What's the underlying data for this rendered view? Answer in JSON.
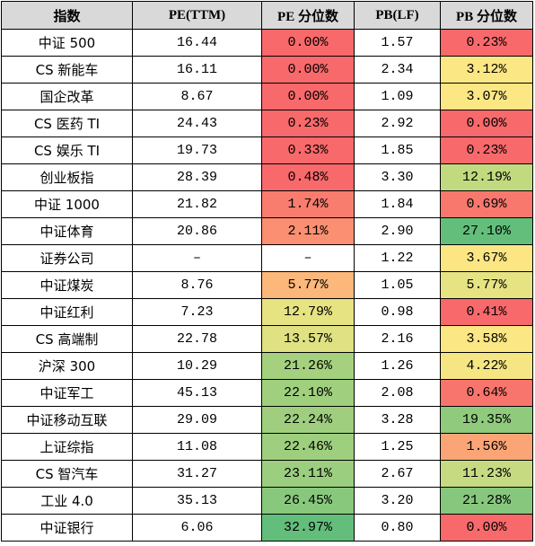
{
  "headers": [
    "指数",
    "PE(TTM)",
    "PE 分位数",
    "PB(LF)",
    "PB 分位数"
  ],
  "rows": [
    {
      "name": "中证 500",
      "pe": "16.44",
      "pe_pct": "0.00%",
      "pe_color": "#f8696b",
      "pb": "1.57",
      "pb_pct": "0.23%",
      "pb_color": "#f8696b"
    },
    {
      "name": "CS 新能车",
      "pe": "16.11",
      "pe_pct": "0.00%",
      "pe_color": "#f8696b",
      "pb": "2.34",
      "pb_pct": "3.12%",
      "pb_color": "#fbe783"
    },
    {
      "name": "国企改革",
      "pe": "8.67",
      "pe_pct": "0.00%",
      "pe_color": "#f8696b",
      "pb": "1.09",
      "pb_pct": "3.07%",
      "pb_color": "#fbe783"
    },
    {
      "name": "CS 医药 TI",
      "pe": "24.43",
      "pe_pct": "0.23%",
      "pe_color": "#f8696b",
      "pb": "2.92",
      "pb_pct": "0.00%",
      "pb_color": "#f8696b"
    },
    {
      "name": "CS 娱乐 TI",
      "pe": "19.73",
      "pe_pct": "0.33%",
      "pe_color": "#f8696b",
      "pb": "1.85",
      "pb_pct": "0.23%",
      "pb_color": "#f8696b"
    },
    {
      "name": "创业板指",
      "pe": "28.39",
      "pe_pct": "0.48%",
      "pe_color": "#f8696b",
      "pb": "3.30",
      "pb_pct": "12.19%",
      "pb_color": "#c1da80"
    },
    {
      "name": "中证 1000",
      "pe": "21.82",
      "pe_pct": "1.74%",
      "pe_color": "#f97d6e",
      "pb": "1.84",
      "pb_pct": "0.69%",
      "pb_color": "#f8786d"
    },
    {
      "name": "中证体育",
      "pe": "20.86",
      "pe_pct": "2.11%",
      "pe_color": "#fa8f71",
      "pb": "2.90",
      "pb_pct": "27.10%",
      "pb_color": "#63be7b"
    },
    {
      "name": "证券公司",
      "pe": "–",
      "pe_pct": "–",
      "pe_color": "#ffffff",
      "pb": "1.22",
      "pb_pct": "3.67%",
      "pb_color": "#fbe683"
    },
    {
      "name": "中证煤炭",
      "pe": "8.76",
      "pe_pct": "5.77%",
      "pe_color": "#fcb77a",
      "pb": "1.05",
      "pb_pct": "5.77%",
      "pb_color": "#e6e383"
    },
    {
      "name": "中证红利",
      "pe": "7.23",
      "pe_pct": "12.79%",
      "pe_color": "#e6e383",
      "pb": "0.98",
      "pb_pct": "0.41%",
      "pb_color": "#f8696b"
    },
    {
      "name": "CS 高端制",
      "pe": "22.78",
      "pe_pct": "13.57%",
      "pe_color": "#dfe182",
      "pb": "2.16",
      "pb_pct": "3.58%",
      "pb_color": "#fbe783"
    },
    {
      "name": "沪深 300",
      "pe": "10.29",
      "pe_pct": "21.26%",
      "pe_color": "#a5d17e",
      "pb": "1.26",
      "pb_pct": "4.22%",
      "pb_color": "#f5e683"
    },
    {
      "name": "中证军工",
      "pe": "45.13",
      "pe_pct": "22.10%",
      "pe_color": "#a0d07e",
      "pb": "2.08",
      "pb_pct": "0.64%",
      "pb_color": "#f8756d"
    },
    {
      "name": "中证移动互联",
      "pe": "29.09",
      "pe_pct": "22.24%",
      "pe_color": "#9fcf7e",
      "pb": "3.28",
      "pb_pct": "19.35%",
      "pb_color": "#8fca7d"
    },
    {
      "name": "上证综指",
      "pe": "11.08",
      "pe_pct": "22.46%",
      "pe_color": "#9ecf7e",
      "pb": "1.25",
      "pb_pct": "1.56%",
      "pb_color": "#fba576"
    },
    {
      "name": "CS 智汽车",
      "pe": "31.27",
      "pe_pct": "23.11%",
      "pe_color": "#9bce7e",
      "pb": "2.67",
      "pb_pct": "11.23%",
      "pb_color": "#c6db81"
    },
    {
      "name": "工业 4.0",
      "pe": "35.13",
      "pe_pct": "26.45%",
      "pe_color": "#88c87d",
      "pb": "3.20",
      "pb_pct": "21.28%",
      "pb_color": "#86c77d"
    },
    {
      "name": "中证银行",
      "pe": "6.06",
      "pe_pct": "32.97%",
      "pe_color": "#63be7b",
      "pb": "0.80",
      "pb_pct": "0.00%",
      "pb_color": "#f8696b"
    }
  ]
}
